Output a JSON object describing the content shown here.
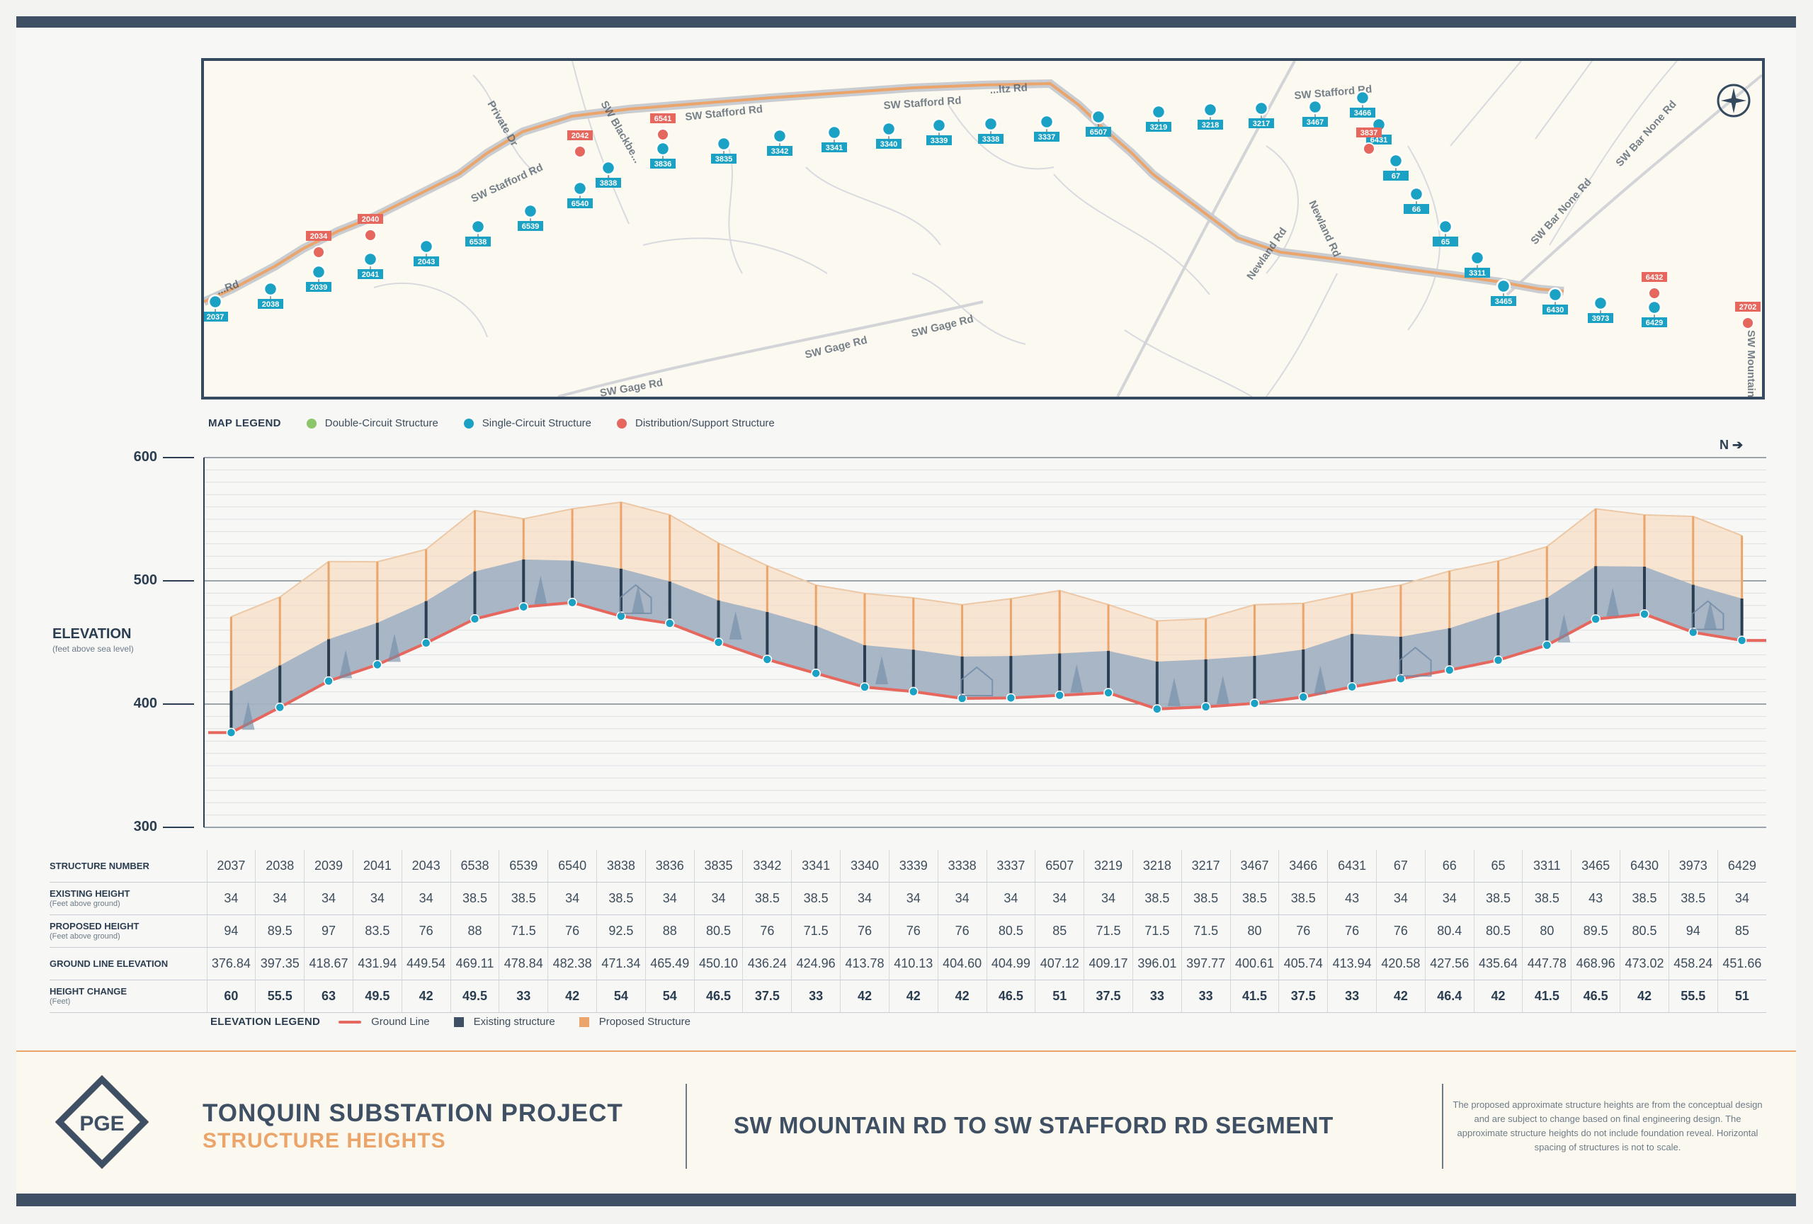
{
  "map_legend": {
    "title": "MAP LEGEND",
    "items": [
      {
        "label": "Double-Circuit Structure",
        "color": "#8cc56b"
      },
      {
        "label": "Single-Circuit Structure",
        "color": "#1ba1c4"
      },
      {
        "label": "Distribution/Support Structure",
        "color": "#e5675e"
      }
    ]
  },
  "map": {
    "roads": [
      "SW Stafford Rd",
      "SW Stafford Rd",
      "SW Stafford Rd",
      "SW Stafford Rd",
      "SW Gage Rd",
      "SW Gage Rd",
      "SW Gage Rd",
      "Newland Rd",
      "Newland Rd",
      "SW Bar None Rd",
      "SW Bar None Rd",
      "SW Mountain Rd",
      "SW Blackbe...",
      "Private Dr",
      "...Rd",
      "...ltz Rd"
    ],
    "blue_structures": [
      "2037",
      "2038",
      "2039",
      "2041",
      "2043",
      "6538",
      "6539",
      "6540",
      "3838",
      "3836",
      "3835",
      "3342",
      "3341",
      "3340",
      "3339",
      "3338",
      "3337",
      "6507",
      "3219",
      "3218",
      "3217",
      "3467",
      "3466",
      "6431",
      "67",
      "66",
      "65",
      "3311",
      "3465",
      "6430",
      "3973",
      "6429"
    ],
    "red_structures": [
      "2034",
      "2040",
      "2042",
      "6541",
      "3837",
      "6432",
      "2702"
    ],
    "colors": {
      "line_proposed": "#eba56a",
      "line_existing": "#c9ccd1",
      "frame": "#354a5f",
      "label_blue": "#1ba1c4",
      "label_red": "#e5675e"
    }
  },
  "elevation": {
    "title": "ELEVATION",
    "subtitle": "(feet above sea level)",
    "north_label": "N"
  },
  "chart_data": {
    "type": "area",
    "x": [
      "2037",
      "2038",
      "2039",
      "2041",
      "2043",
      "6538",
      "6539",
      "6540",
      "3838",
      "3836",
      "3835",
      "3342",
      "3341",
      "3340",
      "3339",
      "3338",
      "3337",
      "6507",
      "3219",
      "3218",
      "3217",
      "3467",
      "3466",
      "6431",
      "67",
      "66",
      "65",
      "3311",
      "3465",
      "6430",
      "3973",
      "6429"
    ],
    "series": [
      {
        "name": "Ground Line",
        "color": "#e5675e",
        "values": [
          376.84,
          397.35,
          418.67,
          431.94,
          449.54,
          469.11,
          478.84,
          482.38,
          471.34,
          465.49,
          450.1,
          436.24,
          424.96,
          413.78,
          410.13,
          404.6,
          404.99,
          407.12,
          409.17,
          396.01,
          397.77,
          400.61,
          405.74,
          413.94,
          420.58,
          427.56,
          435.64,
          447.78,
          468.96,
          473.02,
          458.24,
          451.66
        ]
      },
      {
        "name": "Existing structure",
        "color": "#3f5064",
        "values": [
          34,
          34,
          34,
          34,
          34,
          38.5,
          38.5,
          34,
          38.5,
          34,
          34,
          38.5,
          38.5,
          34,
          34,
          34,
          34,
          34,
          34,
          38.5,
          38.5,
          38.5,
          38.5,
          43,
          34,
          34,
          38.5,
          38.5,
          43,
          38.5,
          38.5,
          34
        ]
      },
      {
        "name": "Proposed Structure",
        "color": "#eba56a",
        "values": [
          94,
          89.5,
          97,
          83.5,
          76,
          88,
          71.5,
          76,
          92.5,
          88,
          80.5,
          76,
          71.5,
          76,
          76,
          76,
          80.5,
          85,
          71.5,
          71.5,
          71.5,
          80,
          76,
          76,
          76,
          80.4,
          80.5,
          80,
          89.5,
          80.5,
          94,
          85
        ]
      }
    ],
    "yticks": [
      300,
      400,
      500,
      600
    ],
    "ylim": [
      300,
      600
    ],
    "ylabel": "ELEVATION",
    "grid": true
  },
  "table": {
    "rows": [
      {
        "label": "STRUCTURE NUMBER",
        "sublabel": "",
        "values": [
          "2037",
          "2038",
          "2039",
          "2041",
          "2043",
          "6538",
          "6539",
          "6540",
          "3838",
          "3836",
          "3835",
          "3342",
          "3341",
          "3340",
          "3339",
          "3338",
          "3337",
          "6507",
          "3219",
          "3218",
          "3217",
          "3467",
          "3466",
          "6431",
          "67",
          "66",
          "65",
          "3311",
          "3465",
          "6430",
          "3973",
          "6429"
        ]
      },
      {
        "label": "EXISTING HEIGHT",
        "sublabel": "(Feet above ground)",
        "values": [
          "34",
          "34",
          "34",
          "34",
          "34",
          "38.5",
          "38.5",
          "34",
          "38.5",
          "34",
          "34",
          "38.5",
          "38.5",
          "34",
          "34",
          "34",
          "34",
          "34",
          "34",
          "38.5",
          "38.5",
          "38.5",
          "38.5",
          "43",
          "34",
          "34",
          "38.5",
          "38.5",
          "43",
          "38.5",
          "38.5",
          "34"
        ]
      },
      {
        "label": "PROPOSED HEIGHT",
        "sublabel": "(Feet above ground)",
        "values": [
          "94",
          "89.5",
          "97",
          "83.5",
          "76",
          "88",
          "71.5",
          "76",
          "92.5",
          "88",
          "80.5",
          "76",
          "71.5",
          "76",
          "76",
          "76",
          "80.5",
          "85",
          "71.5",
          "71.5",
          "71.5",
          "80",
          "76",
          "76",
          "76",
          "80.4",
          "80.5",
          "80",
          "89.5",
          "80.5",
          "94",
          "85"
        ]
      },
      {
        "label": "GROUND LINE ELEVATION",
        "sublabel": "",
        "values": [
          "376.84",
          "397.35",
          "418.67",
          "431.94",
          "449.54",
          "469.11",
          "478.84",
          "482.38",
          "471.34",
          "465.49",
          "450.10",
          "436.24",
          "424.96",
          "413.78",
          "410.13",
          "404.60",
          "404.99",
          "407.12",
          "409.17",
          "396.01",
          "397.77",
          "400.61",
          "405.74",
          "413.94",
          "420.58",
          "427.56",
          "435.64",
          "447.78",
          "468.96",
          "473.02",
          "458.24",
          "451.66"
        ]
      },
      {
        "label": "HEIGHT CHANGE",
        "sublabel": "(Feet)",
        "values": [
          "60",
          "55.5",
          "63",
          "49.5",
          "42",
          "49.5",
          "33",
          "42",
          "54",
          "54",
          "46.5",
          "37.5",
          "33",
          "42",
          "42",
          "42",
          "46.5",
          "51",
          "37.5",
          "33",
          "33",
          "41.5",
          "37.5",
          "33",
          "42",
          "46.4",
          "42",
          "41.5",
          "46.5",
          "42",
          "55.5",
          "51"
        ]
      }
    ]
  },
  "elevation_legend": {
    "title": "ELEVATION LEGEND",
    "items": [
      {
        "label": "Ground Line",
        "color": "#e5675e"
      },
      {
        "label": "Existing structure",
        "color": "#3f5064"
      },
      {
        "label": "Proposed Structure",
        "color": "#eba56a"
      }
    ]
  },
  "footer": {
    "logo_text": "PGE",
    "project_title": "TONQUIN SUBSTATION PROJECT",
    "project_subtitle": "STRUCTURE HEIGHTS",
    "segment": "SW MOUNTAIN RD TO SW STAFFORD RD SEGMENT",
    "note": "The proposed approximate structure heights are from the conceptual design and are subject to change based on final engineering design. The approximate structure heights do not include foundation reveal. Horizontal spacing of structures is not to scale."
  }
}
